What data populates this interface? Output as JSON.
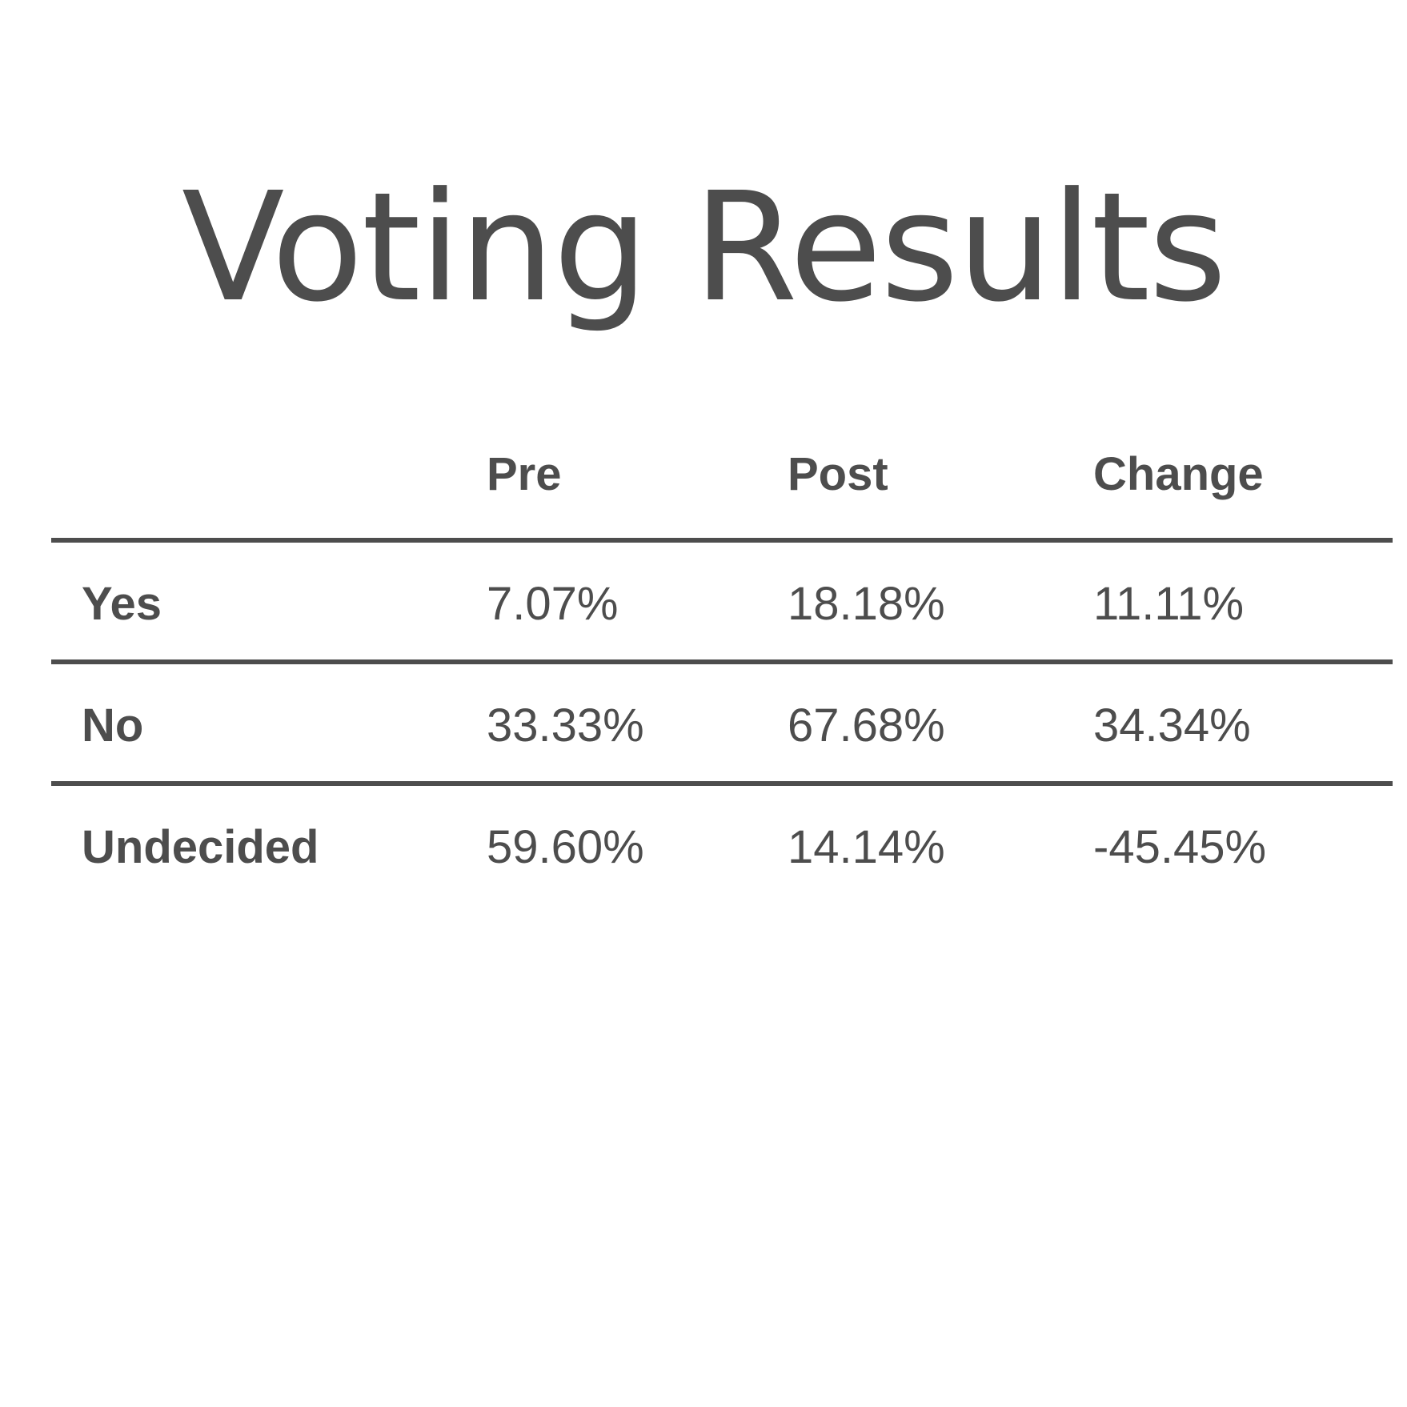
{
  "title": "Voting Results",
  "table": {
    "headers": [
      "",
      "Pre",
      "Post",
      "Change"
    ],
    "rows": [
      {
        "label": "Yes",
        "pre": "7.07%",
        "post": "18.18%",
        "change": "11.11%"
      },
      {
        "label": "No",
        "pre": "33.33%",
        "post": "67.68%",
        "change": "34.34%"
      },
      {
        "label": "Undecided",
        "pre": "59.60%",
        "post": "14.14%",
        "change": "-45.45%"
      }
    ]
  },
  "colors": {
    "text": "#4d4d4d",
    "rule": "#4d4d4d",
    "background": "#ffffff"
  }
}
